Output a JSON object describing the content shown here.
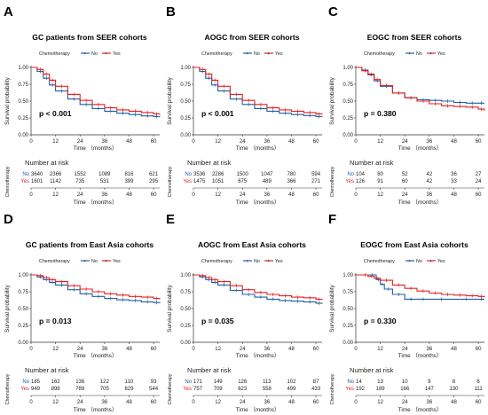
{
  "chart_data": [
    {
      "type": "line",
      "panel_letter": "A",
      "title": "GC patients from SEER cohorts",
      "legend_title": "Chemotherapy",
      "legend_placement": "top",
      "ylabel": "Survival probability",
      "xlabel": "Time （months）",
      "xlim": [
        0,
        63
      ],
      "ylim": [
        0,
        1.0
      ],
      "yticks": [
        "0.00",
        "0.25",
        "0.50",
        "0.75",
        "1.00"
      ],
      "xticks": [
        0,
        12,
        24,
        36,
        48,
        60
      ],
      "p_value": "p < 0.001",
      "series": [
        {
          "name": "No",
          "color": "#1f5fa8",
          "x": [
            0,
            3,
            6,
            9,
            12,
            18,
            24,
            30,
            36,
            42,
            48,
            54,
            60,
            63
          ],
          "values": [
            1.0,
            0.94,
            0.84,
            0.74,
            0.65,
            0.53,
            0.45,
            0.39,
            0.35,
            0.32,
            0.3,
            0.28,
            0.27,
            0.265
          ]
        },
        {
          "name": "Yes",
          "color": "#e52020",
          "x": [
            0,
            3,
            6,
            9,
            12,
            18,
            24,
            30,
            36,
            42,
            48,
            54,
            60,
            63
          ],
          "values": [
            1.0,
            0.97,
            0.9,
            0.81,
            0.72,
            0.6,
            0.51,
            0.45,
            0.4,
            0.37,
            0.35,
            0.33,
            0.31,
            0.3
          ]
        }
      ],
      "risk_table": {
        "title": "Number at risk",
        "ylabel": "Chemotherapy",
        "times": [
          0,
          12,
          24,
          36,
          48,
          60
        ],
        "rows": [
          {
            "label": "No",
            "values": [
              3640,
              2366,
              1552,
              1089,
              816,
              621
            ]
          },
          {
            "label": "Yes",
            "values": [
              1601,
              1142,
              735,
              531,
              399,
              295
            ]
          }
        ]
      }
    },
    {
      "type": "line",
      "panel_letter": "B",
      "title": "AOGC from SEER cohorts",
      "legend_title": "Chemotherapy",
      "legend_placement": "top",
      "ylabel": "Survival probability",
      "xlabel": "Time （months）",
      "xlim": [
        0,
        63
      ],
      "ylim": [
        0,
        1.0
      ],
      "yticks": [
        "0.00",
        "0.25",
        "0.50",
        "0.75",
        "1.00"
      ],
      "xticks": [
        0,
        12,
        24,
        36,
        48,
        60
      ],
      "p_value": "p < 0.001",
      "series": [
        {
          "name": "No",
          "color": "#1f5fa8",
          "x": [
            0,
            3,
            6,
            9,
            12,
            18,
            24,
            30,
            36,
            42,
            48,
            54,
            60,
            63
          ],
          "values": [
            1.0,
            0.94,
            0.84,
            0.74,
            0.65,
            0.53,
            0.45,
            0.39,
            0.35,
            0.32,
            0.3,
            0.285,
            0.27,
            0.265
          ]
        },
        {
          "name": "Yes",
          "color": "#e52020",
          "x": [
            0,
            3,
            6,
            9,
            12,
            18,
            24,
            30,
            36,
            42,
            48,
            54,
            60,
            63
          ],
          "values": [
            1.0,
            0.97,
            0.9,
            0.81,
            0.72,
            0.6,
            0.51,
            0.45,
            0.4,
            0.37,
            0.35,
            0.33,
            0.31,
            0.3
          ]
        }
      ],
      "risk_table": {
        "title": "Number at risk",
        "ylabel": "Chemotherapy",
        "times": [
          0,
          12,
          24,
          36,
          48,
          60
        ],
        "rows": [
          {
            "label": "No",
            "values": [
              3536,
              2286,
              1500,
              1047,
              780,
              594
            ]
          },
          {
            "label": "Yes",
            "values": [
              1475,
              1051,
              675,
              489,
              366,
              271
            ]
          }
        ]
      }
    },
    {
      "type": "line",
      "panel_letter": "C",
      "title": "EOGC from SEER cohorts",
      "legend_title": "Chemotherapy",
      "legend_placement": "top",
      "ylabel": "Survival probability",
      "xlabel": "Time （months）",
      "xlim": [
        0,
        63
      ],
      "ylim": [
        0,
        1.0
      ],
      "yticks": [
        "0.00",
        "0.25",
        "0.50",
        "0.75",
        "1.00"
      ],
      "xticks": [
        0,
        12,
        24,
        36,
        48,
        60
      ],
      "p_value": "p = 0.380",
      "series": [
        {
          "name": "No",
          "color": "#1f5fa8",
          "x": [
            0,
            3,
            6,
            9,
            12,
            18,
            24,
            30,
            36,
            42,
            48,
            54,
            60,
            63
          ],
          "values": [
            1.0,
            0.96,
            0.89,
            0.8,
            0.72,
            0.62,
            0.55,
            0.52,
            0.51,
            0.5,
            0.48,
            0.47,
            0.47,
            0.47
          ]
        },
        {
          "name": "Yes",
          "color": "#e52020",
          "x": [
            0,
            3,
            6,
            9,
            12,
            18,
            24,
            30,
            36,
            42,
            48,
            54,
            60,
            63
          ],
          "values": [
            1.0,
            0.95,
            0.9,
            0.82,
            0.73,
            0.62,
            0.55,
            0.5,
            0.46,
            0.43,
            0.42,
            0.41,
            0.38,
            0.36
          ]
        }
      ],
      "risk_table": {
        "title": "Number at risk",
        "ylabel": "Chemotherapy",
        "times": [
          0,
          12,
          24,
          36,
          48,
          60
        ],
        "rows": [
          {
            "label": "No",
            "values": [
              104,
              80,
              52,
              42,
              36,
              27
            ]
          },
          {
            "label": "Yes",
            "values": [
              126,
              91,
              60,
              42,
              33,
              24
            ]
          }
        ]
      }
    },
    {
      "type": "line",
      "panel_letter": "D",
      "title": "GC patients from East Asia cohorts",
      "legend_title": "Chemotherapy",
      "legend_placement": "top",
      "ylabel": "Survival probability",
      "xlabel": "Time （months）",
      "xlim": [
        0,
        63
      ],
      "ylim": [
        0,
        1.0
      ],
      "yticks": [
        "0.00",
        "0.25",
        "0.50",
        "0.75",
        "1.00"
      ],
      "xticks": [
        0,
        12,
        24,
        36,
        48,
        60
      ],
      "p_value": "p = 0.013",
      "series": [
        {
          "name": "No",
          "color": "#1f5fa8",
          "x": [
            0,
            3,
            6,
            9,
            12,
            18,
            24,
            30,
            36,
            42,
            48,
            54,
            60,
            63
          ],
          "values": [
            1.0,
            0.97,
            0.93,
            0.89,
            0.85,
            0.78,
            0.72,
            0.68,
            0.65,
            0.63,
            0.62,
            0.6,
            0.59,
            0.58
          ]
        },
        {
          "name": "Yes",
          "color": "#e52020",
          "x": [
            0,
            3,
            6,
            9,
            12,
            18,
            24,
            30,
            36,
            42,
            48,
            54,
            60,
            63
          ],
          "values": [
            1.0,
            0.99,
            0.96,
            0.93,
            0.9,
            0.84,
            0.79,
            0.75,
            0.72,
            0.7,
            0.68,
            0.67,
            0.65,
            0.64
          ]
        }
      ],
      "risk_table": {
        "title": "Number at risk",
        "ylabel": "Chemotherapy",
        "times": [
          0,
          12,
          24,
          36,
          48,
          60
        ],
        "rows": [
          {
            "label": "No",
            "values": [
              185,
              162,
              136,
              122,
              110,
              93
            ]
          },
          {
            "label": "Yes",
            "values": [
              949,
              898,
              789,
              705,
              629,
              544
            ]
          }
        ]
      }
    },
    {
      "type": "line",
      "panel_letter": "E",
      "title": "AOGC from East Asia cohorts",
      "legend_title": "Chemotherapy",
      "legend_placement": "top",
      "ylabel": "Survival probability",
      "xlabel": "Time （months）",
      "xlim": [
        0,
        63
      ],
      "ylim": [
        0,
        1.0
      ],
      "yticks": [
        "0.00",
        "0.25",
        "0.50",
        "0.75",
        "1.00"
      ],
      "xticks": [
        0,
        12,
        24,
        36,
        48,
        60
      ],
      "p_value": "p = 0.035",
      "series": [
        {
          "name": "No",
          "color": "#1f5fa8",
          "x": [
            0,
            3,
            6,
            9,
            12,
            18,
            24,
            30,
            36,
            42,
            48,
            54,
            60,
            63
          ],
          "values": [
            1.0,
            0.97,
            0.93,
            0.89,
            0.85,
            0.77,
            0.71,
            0.67,
            0.64,
            0.62,
            0.61,
            0.6,
            0.58,
            0.57
          ]
        },
        {
          "name": "Yes",
          "color": "#e52020",
          "x": [
            0,
            3,
            6,
            9,
            12,
            18,
            24,
            30,
            36,
            42,
            48,
            54,
            60,
            63
          ],
          "values": [
            1.0,
            0.99,
            0.96,
            0.93,
            0.9,
            0.84,
            0.78,
            0.74,
            0.71,
            0.69,
            0.67,
            0.66,
            0.64,
            0.63
          ]
        }
      ],
      "risk_table": {
        "title": "Number at risk",
        "ylabel": "Chemotherapy",
        "times": [
          0,
          12,
          24,
          36,
          48,
          60
        ],
        "rows": [
          {
            "label": "No",
            "values": [
              171,
              149,
              126,
              113,
              102,
              87
            ]
          },
          {
            "label": "Yes",
            "values": [
              757,
              709,
              623,
              558,
              499,
              433
            ]
          }
        ]
      }
    },
    {
      "type": "line",
      "panel_letter": "F",
      "title": "EOGC from East Asia cohorts",
      "legend_title": "Chemotherapy",
      "legend_placement": "top",
      "ylabel": "Survival probability",
      "xlabel": "Time （months）",
      "xlim": [
        0,
        63
      ],
      "ylim": [
        0,
        1.0
      ],
      "yticks": [
        "0.00",
        "0.25",
        "0.50",
        "0.75",
        "1.00"
      ],
      "xticks": [
        0,
        12,
        24,
        36,
        48,
        60
      ],
      "p_value": "p = 0.330",
      "series": [
        {
          "name": "No",
          "color": "#1f5fa8",
          "x": [
            0,
            6,
            10,
            12,
            14,
            18,
            24,
            30,
            36,
            48,
            60,
            63
          ],
          "values": [
            1.0,
            1.0,
            0.93,
            0.86,
            0.79,
            0.71,
            0.64,
            0.64,
            0.64,
            0.64,
            0.64,
            0.64
          ]
        },
        {
          "name": "Yes",
          "color": "#e52020",
          "x": [
            0,
            3,
            6,
            9,
            12,
            18,
            24,
            30,
            36,
            42,
            48,
            54,
            60,
            63
          ],
          "values": [
            1.0,
            1.0,
            0.98,
            0.95,
            0.92,
            0.85,
            0.8,
            0.76,
            0.73,
            0.71,
            0.7,
            0.69,
            0.68,
            0.67
          ]
        }
      ],
      "risk_table": {
        "title": "Number at risk",
        "ylabel": "Chemotherapy",
        "times": [
          0,
          12,
          24,
          36,
          48,
          60
        ],
        "rows": [
          {
            "label": "No",
            "values": [
              14,
              13,
              10,
              9,
              8,
              6
            ]
          },
          {
            "label": "Yes",
            "values": [
              192,
              189,
              166,
              147,
              130,
              111
            ]
          }
        ]
      }
    }
  ]
}
